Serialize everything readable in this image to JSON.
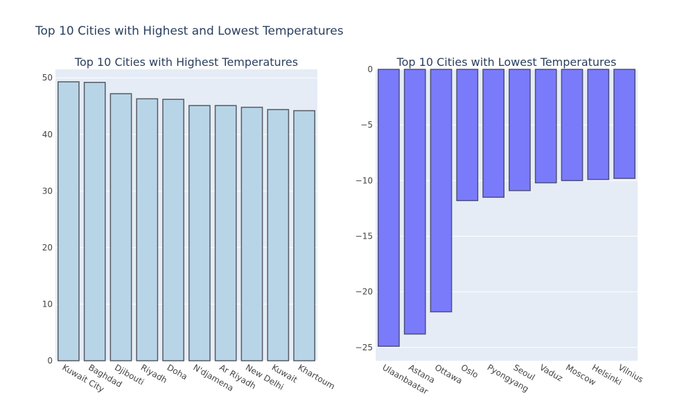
{
  "figure_title": "Top 10 Cities with Highest and Lowest Temperatures",
  "chart_data": [
    {
      "type": "bar",
      "title": "Top 10 Cities with Highest Temperatures",
      "categories": [
        "Kuwait City",
        "Baghdad",
        "Djibouti",
        "Riyadh",
        "Doha",
        "N'djamena",
        "Ar Riyadh",
        "New Delhi",
        "Kuwait",
        "Khartoum"
      ],
      "values": [
        49.3,
        49.2,
        47.2,
        46.3,
        46.2,
        45.1,
        45.1,
        44.8,
        44.4,
        44.2
      ],
      "ylim": [
        0,
        51.5
      ],
      "yticks": [
        0,
        10,
        20,
        30,
        40,
        50
      ],
      "ytick_labels": [
        "0",
        "10",
        "20",
        "30",
        "40",
        "50"
      ],
      "grid": true,
      "bar_color": "#b8d5e8",
      "bar_stroke": "#555a63",
      "plot_bg": "#e5ecf6"
    },
    {
      "type": "bar",
      "title": "Top 10 Cities with Lowest Temperatures",
      "categories": [
        "Ulaanbaatar",
        "Astana",
        "Ottawa",
        "Oslo",
        "Pyongyang",
        "Seoul",
        "Vaduz",
        "Moscow",
        "Helsinki",
        "Vilnius"
      ],
      "values": [
        -24.9,
        -23.8,
        -21.8,
        -11.8,
        -11.5,
        -10.9,
        -10.2,
        -10.0,
        -9.9,
        -9.8
      ],
      "ylim": [
        -26.2,
        0
      ],
      "yticks": [
        0,
        -5,
        -10,
        -15,
        -20,
        -25
      ],
      "ytick_labels": [
        "0",
        "−5",
        "−10",
        "−15",
        "−20",
        "−25"
      ],
      "grid": true,
      "bar_color": "#7a7bfb",
      "bar_stroke": "#4d4f7a",
      "plot_bg": "#e5ecf6"
    }
  ],
  "colors": {
    "text": "#2a3f5f",
    "tick_text": "#444444",
    "grid": "#ffffff"
  }
}
